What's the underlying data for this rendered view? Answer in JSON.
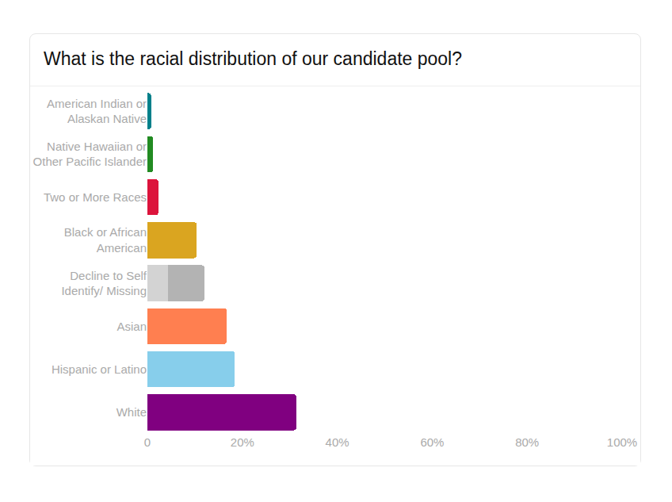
{
  "chart_data": {
    "type": "bar",
    "title": "What is the racial distribution of our candidate pool?",
    "orientation": "horizontal",
    "stacked": true,
    "categories": [
      "American Indian or Alaskan Native",
      "Native Hawaiian or Other Pacific Islander",
      "Two or More Races",
      "Black or African American",
      "Decline to Self Identify/ Missing",
      "Asian",
      "Hispanic or Latino",
      "White"
    ],
    "series": [
      {
        "values": [
          0.8,
          1.2,
          2.3,
          10.4,
          4.3,
          16.7,
          18.4,
          31.4
        ],
        "colors": [
          "#00808a",
          "#228b22",
          "#dc143c",
          "#daa520",
          "#d3d3d3",
          "#ff7f50",
          "#87ceeb",
          "#800080"
        ]
      },
      {
        "values": [
          null,
          null,
          null,
          null,
          7.7,
          null,
          null,
          null
        ],
        "color": "#b3b3b3"
      }
    ],
    "xlim": [
      0,
      100
    ],
    "xticks": [
      0,
      {
        "value": 20,
        "label": "20%"
      },
      {
        "value": 40,
        "label": "40%"
      },
      {
        "value": 60,
        "label": "60%"
      },
      {
        "value": 80,
        "label": "80%"
      },
      {
        "value": 100,
        "label": "100%"
      }
    ],
    "grid": false
  }
}
